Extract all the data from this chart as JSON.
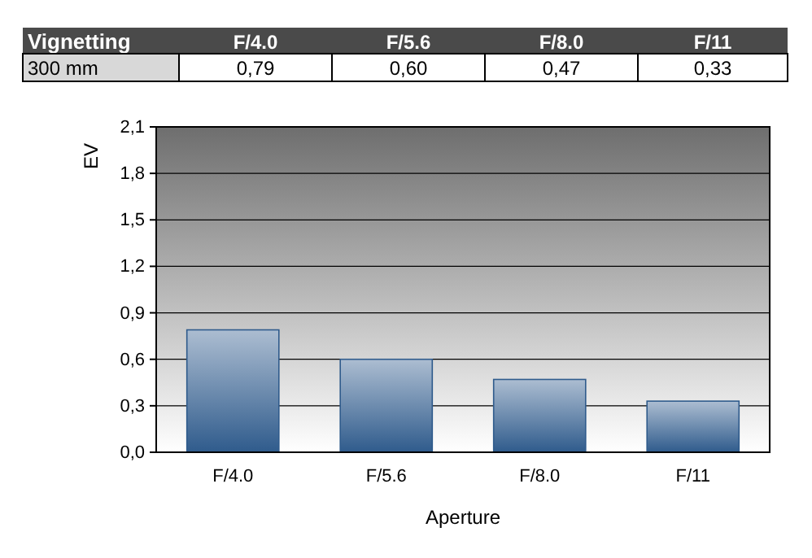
{
  "chart_data": {
    "type": "bar",
    "title": "Vignetting",
    "xlabel": "Aperture",
    "ylabel": "EV",
    "categories": [
      "F/4.0",
      "F/5.6",
      "F/8.0",
      "F/11"
    ],
    "series": [
      {
        "name": "300 mm",
        "color": "#2f5b8c",
        "values": [
          0.79,
          0.6,
          0.47,
          0.33
        ],
        "value_labels": [
          "0,79",
          "0,60",
          "0,47",
          "0,33"
        ]
      }
    ],
    "ylim": [
      0,
      2.1
    ],
    "yticks": [
      {
        "value": 0,
        "label": "0,0"
      },
      {
        "value": 0.3,
        "label": "0,3"
      },
      {
        "value": 0.6,
        "label": "0,6"
      },
      {
        "value": 0.9,
        "label": "0,9"
      },
      {
        "value": 1.2,
        "label": "1,2"
      },
      {
        "value": 1.5,
        "label": "1,5"
      },
      {
        "value": 1.8,
        "label": "1,8"
      },
      {
        "value": 2.1,
        "label": "2,1"
      }
    ],
    "grid": "y"
  }
}
